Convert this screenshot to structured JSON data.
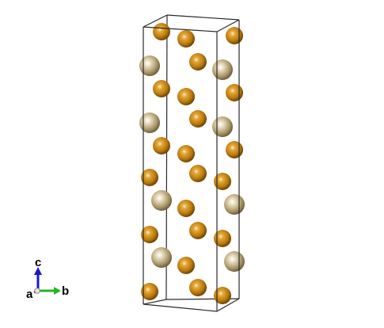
{
  "axes": {
    "labels": {
      "a": "a",
      "b": "b",
      "c": "c"
    },
    "colors": {
      "a": "#d11f1f",
      "b": "#22b722",
      "c": "#1818c8"
    }
  },
  "atoms": {
    "species": [
      {
        "id": "gold",
        "color": "#c98a14",
        "rim": "#7a4f05",
        "highlight": "#ffe7a6"
      },
      {
        "id": "pale",
        "color": "#b9a578",
        "rim": "#7a6a45",
        "highlight": "#fbf5e3"
      }
    ]
  }
}
